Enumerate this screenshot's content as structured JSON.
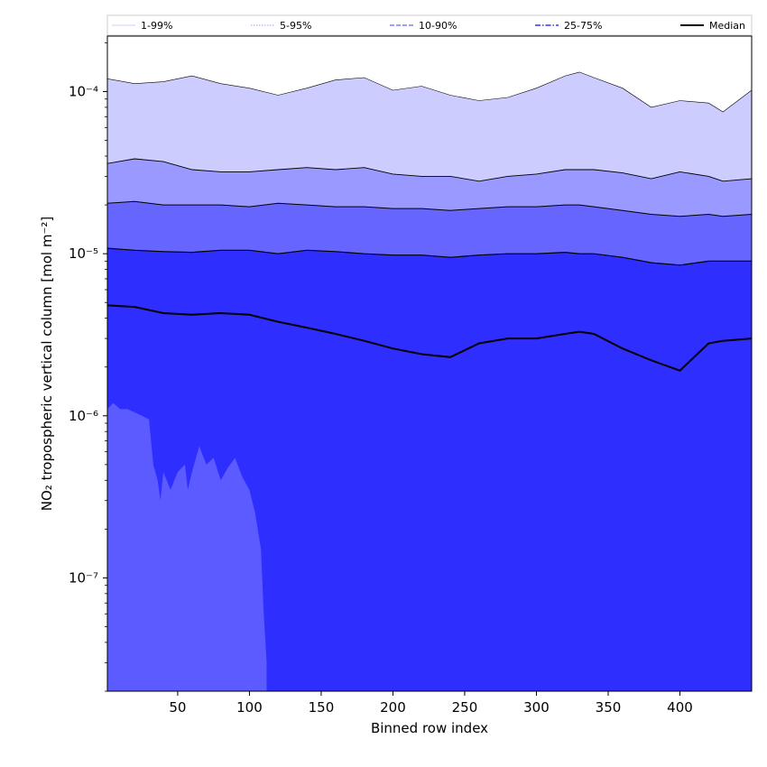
{
  "chart_data": {
    "type": "area",
    "xlabel": "Binned row index",
    "ylabel": "NO₂ tropospheric vertical column [mol m⁻²]",
    "yscale": "log",
    "xlim": [
      1,
      450
    ],
    "ylim": [
      2e-08,
      0.00022
    ],
    "x_ticks": [
      50,
      100,
      150,
      200,
      250,
      300,
      350,
      400
    ],
    "y_ticks": [
      {
        "value": 1e-07,
        "label": "10⁻⁷"
      },
      {
        "value": 1e-06,
        "label": "10⁻⁶"
      },
      {
        "value": 1e-05,
        "label": "10⁻⁵"
      },
      {
        "value": 0.0001,
        "label": "10⁻⁴"
      }
    ],
    "legend": {
      "placement": "top",
      "entries": [
        {
          "name": "1-99%",
          "color": "#ccccff",
          "style": "solid-thin"
        },
        {
          "name": "5-95%",
          "color": "#9999ff",
          "style": "dotted"
        },
        {
          "name": "10-90%",
          "color": "#6666ff",
          "style": "dashed"
        },
        {
          "name": "25-75%",
          "color": "#3333ff",
          "style": "dashdot"
        },
        {
          "name": "Median",
          "color": "#000000",
          "style": "solid-thick"
        }
      ]
    },
    "x": [
      1,
      20,
      40,
      60,
      80,
      100,
      120,
      140,
      160,
      180,
      200,
      220,
      240,
      260,
      280,
      300,
      320,
      330,
      340,
      360,
      380,
      400,
      420,
      430,
      450
    ],
    "series": [
      {
        "name": "1-99% upper",
        "values": [
          0.00012,
          0.000112,
          0.000115,
          0.000125,
          0.000112,
          0.000105,
          9.5e-05,
          0.000105,
          0.000118,
          0.000122,
          0.000102,
          0.000108,
          9.5e-05,
          8.8e-05,
          9.2e-05,
          0.000105,
          0.000125,
          0.000132,
          0.000122,
          0.000105,
          8e-05,
          8.8e-05,
          8.5e-05,
          7.5e-05,
          0.000102
        ]
      },
      {
        "name": "5-95% upper",
        "values": [
          3.6e-05,
          3.85e-05,
          3.7e-05,
          3.3e-05,
          3.2e-05,
          3.2e-05,
          3.3e-05,
          3.4e-05,
          3.3e-05,
          3.4e-05,
          3.1e-05,
          3e-05,
          3e-05,
          2.8e-05,
          3e-05,
          3.1e-05,
          3.3e-05,
          3.3e-05,
          3.3e-05,
          3.15e-05,
          2.9e-05,
          3.2e-05,
          3e-05,
          2.8e-05,
          2.9e-05
        ]
      },
      {
        "name": "10-90% upper",
        "values": [
          2.05e-05,
          2.1e-05,
          2e-05,
          2e-05,
          2e-05,
          1.95e-05,
          2.05e-05,
          2e-05,
          1.95e-05,
          1.95e-05,
          1.9e-05,
          1.9e-05,
          1.85e-05,
          1.9e-05,
          1.95e-05,
          1.95e-05,
          2e-05,
          2e-05,
          1.95e-05,
          1.85e-05,
          1.75e-05,
          1.7e-05,
          1.75e-05,
          1.7e-05,
          1.75e-05
        ]
      },
      {
        "name": "25-75% upper",
        "values": [
          1.08e-05,
          1.05e-05,
          1.03e-05,
          1.02e-05,
          1.05e-05,
          1.05e-05,
          1e-05,
          1.05e-05,
          1.03e-05,
          1e-05,
          9.8e-06,
          9.8e-06,
          9.5e-06,
          9.8e-06,
          1e-05,
          1e-05,
          1.02e-05,
          1e-05,
          1e-05,
          9.5e-06,
          8.8e-06,
          8.5e-06,
          9e-06,
          9e-06,
          9e-06
        ]
      },
      {
        "name": "Median",
        "values": [
          4.8e-06,
          4.7e-06,
          4.3e-06,
          4.2e-06,
          4.3e-06,
          4.2e-06,
          3.8e-06,
          3.5e-06,
          3.2e-06,
          2.9e-06,
          2.6e-06,
          2.4e-06,
          2.3e-06,
          2.8e-06,
          3e-06,
          3e-06,
          3.2e-06,
          3.3e-06,
          3.2e-06,
          2.6e-06,
          2.2e-06,
          1.9e-06,
          2.8e-06,
          2.9e-06,
          3e-06
        ]
      }
    ],
    "lower_band_x": [
      1,
      5,
      10,
      15,
      20,
      25,
      30,
      33,
      36,
      38,
      40,
      45,
      50,
      55,
      57,
      60,
      65,
      70,
      75,
      80,
      85,
      90,
      95,
      100,
      104,
      108,
      110,
      112
    ],
    "lower_band_values": [
      1.1e-06,
      1.2e-06,
      1.1e-06,
      1.1e-06,
      1.05e-06,
      1e-06,
      9.5e-07,
      5e-07,
      4e-07,
      3e-07,
      4.5e-07,
      3.5e-07,
      4.5e-07,
      5e-07,
      3.5e-07,
      4.5e-07,
      6.5e-07,
      5e-07,
      5.5e-07,
      4e-07,
      4.8e-07,
      5.5e-07,
      4.2e-07,
      3.5e-07,
      2.5e-07,
      1.5e-07,
      6e-08,
      3e-08
    ]
  }
}
